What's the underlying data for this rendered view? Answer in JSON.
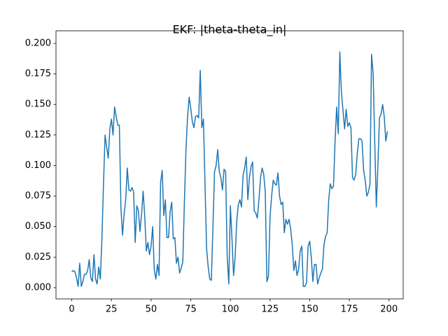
{
  "chart_data": {
    "type": "line",
    "title": "EKF: |theta-theta_in|",
    "color": "#1f77b4",
    "x": [
      0,
      1,
      2,
      3,
      4,
      5,
      6,
      7,
      8,
      9,
      10,
      11,
      12,
      13,
      14,
      15,
      16,
      17,
      18,
      19,
      20,
      21,
      22,
      23,
      24,
      25,
      26,
      27,
      28,
      29,
      30,
      31,
      32,
      33,
      34,
      35,
      36,
      37,
      38,
      39,
      40,
      41,
      42,
      43,
      44,
      45,
      46,
      47,
      48,
      49,
      50,
      51,
      52,
      53,
      54,
      55,
      56,
      57,
      58,
      59,
      60,
      61,
      62,
      63,
      64,
      65,
      66,
      67,
      68,
      69,
      70,
      71,
      72,
      73,
      74,
      75,
      76,
      77,
      78,
      79,
      80,
      81,
      82,
      83,
      84,
      85,
      86,
      87,
      88,
      89,
      90,
      91,
      92,
      93,
      94,
      95,
      96,
      97,
      98,
      99,
      100,
      101,
      102,
      103,
      104,
      105,
      106,
      107,
      108,
      109,
      110,
      111,
      112,
      113,
      114,
      115,
      116,
      117,
      118,
      119,
      120,
      121,
      122,
      123,
      124,
      125,
      126,
      127,
      128,
      129,
      130,
      131,
      132,
      133,
      134,
      135,
      136,
      137,
      138,
      139,
      140,
      141,
      142,
      143,
      144,
      145,
      146,
      147,
      148,
      149,
      150,
      151,
      152,
      153,
      154,
      155,
      156,
      157,
      158,
      159,
      160,
      161,
      162,
      163,
      164,
      165,
      166,
      167,
      168,
      169,
      170,
      171,
      172,
      173,
      174,
      175,
      176,
      177,
      178,
      179,
      180,
      181,
      182,
      183,
      184,
      185,
      186,
      187,
      188,
      189,
      190,
      191,
      192,
      193,
      194,
      195,
      196,
      197,
      198,
      199
    ],
    "values": [
      0.013,
      0.014,
      0.013,
      0.008,
      0.001,
      0.02,
      0.001,
      0.005,
      0.011,
      0.011,
      0.014,
      0.023,
      0.008,
      0.005,
      0.027,
      0.007,
      0.003,
      0.017,
      0.007,
      0.04,
      0.085,
      0.125,
      0.115,
      0.106,
      0.13,
      0.138,
      0.125,
      0.148,
      0.14,
      0.133,
      0.133,
      0.065,
      0.043,
      0.06,
      0.072,
      0.098,
      0.08,
      0.079,
      0.082,
      0.078,
      0.037,
      0.067,
      0.063,
      0.046,
      0.06,
      0.079,
      0.058,
      0.03,
      0.037,
      0.027,
      0.034,
      0.05,
      0.015,
      0.007,
      0.019,
      0.01,
      0.086,
      0.096,
      0.059,
      0.072,
      0.041,
      0.041,
      0.062,
      0.07,
      0.04,
      0.041,
      0.02,
      0.025,
      0.012,
      0.016,
      0.021,
      0.07,
      0.113,
      0.14,
      0.156,
      0.147,
      0.136,
      0.131,
      0.14,
      0.141,
      0.139,
      0.178,
      0.131,
      0.138,
      0.085,
      0.032,
      0.017,
      0.007,
      0.006,
      0.05,
      0.095,
      0.1,
      0.113,
      0.095,
      0.09,
      0.08,
      0.097,
      0.095,
      0.025,
      0.003,
      0.067,
      0.04,
      0.01,
      0.025,
      0.055,
      0.068,
      0.072,
      0.066,
      0.092,
      0.098,
      0.107,
      0.072,
      0.09,
      0.099,
      0.103,
      0.063,
      0.061,
      0.057,
      0.072,
      0.09,
      0.098,
      0.093,
      0.078,
      0.005,
      0.009,
      0.058,
      0.075,
      0.088,
      0.085,
      0.084,
      0.094,
      0.075,
      0.068,
      0.07,
      0.045,
      0.056,
      0.052,
      0.056,
      0.048,
      0.035,
      0.014,
      0.022,
      0.01,
      0.015,
      0.03,
      0.034,
      0.001,
      0.001,
      0.004,
      0.034,
      0.038,
      0.025,
      0.005,
      0.019,
      0.019,
      0.003,
      0.008,
      0.012,
      0.015,
      0.035,
      0.042,
      0.045,
      0.072,
      0.085,
      0.081,
      0.083,
      0.12,
      0.148,
      0.126,
      0.193,
      0.16,
      0.145,
      0.13,
      0.146,
      0.132,
      0.135,
      0.131,
      0.09,
      0.088,
      0.093,
      0.11,
      0.122,
      0.122,
      0.12,
      0.096,
      0.088,
      0.075,
      0.078,
      0.085,
      0.191,
      0.175,
      0.12,
      0.066,
      0.1,
      0.139,
      0.142,
      0.15,
      0.14,
      0.12,
      0.128
    ],
    "xlim": [
      -9.95,
      208.95
    ],
    "ylim": [
      -0.0092,
      0.2103
    ],
    "xticks": [
      0,
      25,
      50,
      75,
      100,
      125,
      150,
      175,
      200
    ],
    "yticks": [
      {
        "value": 0,
        "label": "0.000"
      },
      {
        "value": 0.025,
        "label": "0.025"
      },
      {
        "value": 0.05,
        "label": "0.050"
      },
      {
        "value": 0.075,
        "label": "0.075"
      },
      {
        "value": 0.1,
        "label": "0.100"
      },
      {
        "value": 0.125,
        "label": "0.125"
      },
      {
        "value": 0.15,
        "label": "0.150"
      },
      {
        "value": 0.175,
        "label": "0.175"
      },
      {
        "value": 0.2,
        "label": "0.200"
      }
    ]
  }
}
